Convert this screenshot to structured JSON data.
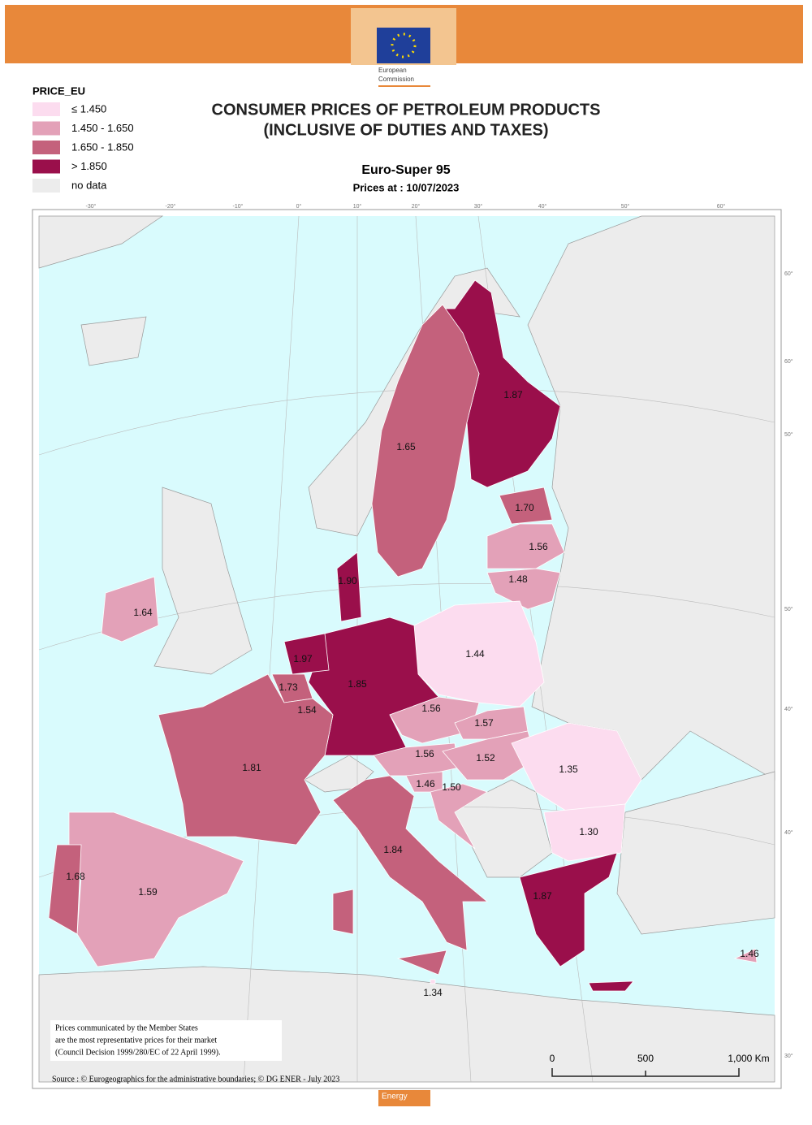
{
  "header": {
    "logo_text": [
      "European",
      "Commission"
    ]
  },
  "legend": {
    "title": "PRICE_EU",
    "items": [
      {
        "label": "≤ 1.450",
        "color": "#fcdcef"
      },
      {
        "label": "1.450 - 1.650",
        "color": "#e3a1b8"
      },
      {
        "label": "1.650 - 1.850",
        "color": "#c4617c"
      },
      {
        "label": "> 1.850",
        "color": "#9a0f4b"
      },
      {
        "label": "no data",
        "color": "#ececec"
      }
    ]
  },
  "title": [
    "CONSUMER PRICES OF PETROLEUM PRODUCTS",
    "(INCLUSIVE OF DUTIES AND TAXES)"
  ],
  "subtitle": "Euro-Super 95",
  "date": "Prices at : 10/07/2023",
  "map": {
    "regions": [
      {
        "label": "1.87",
        "color": "#9a0f4b"
      },
      {
        "label": "1.65",
        "color": "#c4617c"
      },
      {
        "label": "1.70",
        "color": "#c4617c"
      },
      {
        "label": "1.56",
        "color": "#e3a1b8"
      },
      {
        "label": "1.48",
        "color": "#e3a1b8"
      },
      {
        "label": "1.44",
        "color": "#fcdcef"
      },
      {
        "label": "1.85",
        "color": "#9a0f4b"
      },
      {
        "label": "1.90",
        "color": "#9a0f4b"
      },
      {
        "label": "1.97",
        "color": "#9a0f4b"
      },
      {
        "label": "1.73",
        "color": "#c4617c"
      },
      {
        "label": "1.54",
        "color": "#e3a1b8"
      },
      {
        "label": "1.81",
        "color": "#c4617c"
      },
      {
        "label": "1.56",
        "color": "#e3a1b8"
      },
      {
        "label": "1.57",
        "color": "#e3a1b8"
      },
      {
        "label": "1.56",
        "color": "#e3a1b8"
      },
      {
        "label": "1.52",
        "color": "#e3a1b8"
      },
      {
        "label": "1.46",
        "color": "#e3a1b8"
      },
      {
        "label": "1.50",
        "color": "#e3a1b8"
      },
      {
        "label": "1.35",
        "color": "#fcdcef"
      },
      {
        "label": "1.30",
        "color": "#fcdcef"
      },
      {
        "label": "1.87",
        "color": "#9a0f4b"
      },
      {
        "label": "1.84",
        "color": "#c4617c"
      },
      {
        "label": "1.34",
        "color": "#fcdcef"
      },
      {
        "label": "1.59",
        "color": "#e3a1b8"
      },
      {
        "label": "1.68",
        "color": "#c4617c"
      },
      {
        "label": "1.64",
        "color": "#e3a1b8"
      },
      {
        "label": "1.46",
        "color": "#e3a1b8"
      }
    ],
    "graticule_top": [
      "-30°",
      "-20°",
      "-10°",
      "0°",
      "10°",
      "20°",
      "30°",
      "40°",
      "50°",
      "60°"
    ],
    "graticule_right": [
      "60°",
      "60°",
      "50°",
      "50°",
      "40°",
      "40°",
      "30°"
    ]
  },
  "scale_bar": [
    "0",
    "500",
    "1,000 Km"
  ],
  "note": [
    "Prices communicated by the Member States",
    "are the most representative prices for their market",
    "(Council Decision 1999/280/EC of 22 April 1999)."
  ],
  "source": "Source : © Eurogeographics for the administrative boundaries;  ©  DG ENER - July 2023",
  "footer": "Energy"
}
